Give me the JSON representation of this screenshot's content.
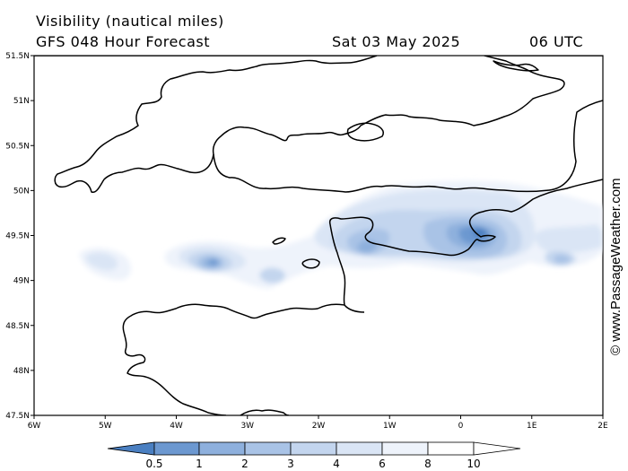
{
  "header": {
    "title": "Visibility (nautical miles)",
    "subtitle": "GFS 048 Hour Forecast",
    "date": "Sat 03 May 2025",
    "time": "06 UTC"
  },
  "watermark": "© www.PassageWeather.com",
  "map": {
    "lon_range": [
      -6,
      2
    ],
    "lat_range": [
      47.5,
      51.5
    ],
    "lat_labels": [
      "51.5N",
      "51N",
      "50.5N",
      "50N",
      "49.5N",
      "49N",
      "48.5N",
      "48N",
      "47.5N"
    ],
    "lon_labels": [
      "6W",
      "5W",
      "4W",
      "3W",
      "2W",
      "1W",
      "0",
      "1E",
      "2E"
    ],
    "land_outline_color": "#000000",
    "background_color": "#ffffff"
  },
  "legend": {
    "labels": [
      "0.5",
      "1",
      "2",
      "3",
      "4",
      "6",
      "8",
      "10"
    ],
    "colors": [
      "#4a7fc1",
      "#6c98d0",
      "#8eb0dd",
      "#a9c3e6",
      "#c3d5ee",
      "#dae5f5",
      "#eef3fb",
      "#ffffff"
    ]
  },
  "colors": {
    "low_visibility": "#4a7fc1",
    "mid_visibility": "#a9c3e6",
    "high_visibility": "#ffffff"
  }
}
